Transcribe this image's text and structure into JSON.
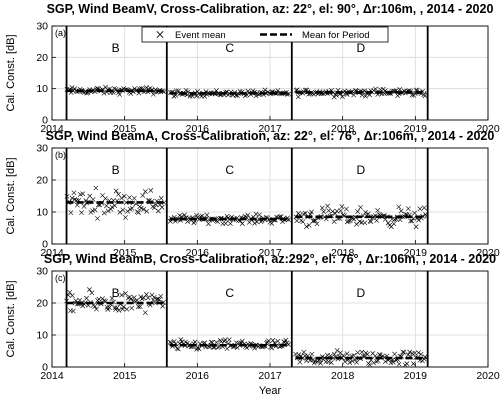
{
  "legend": {
    "event_label": "Event mean",
    "period_label": "Mean for Period",
    "placement": "top-center"
  },
  "chart_data": [
    {
      "type": "scatter",
      "title": "SGP, Wind BeamV, Cross-Calibration, az: 22°, el: 90°, Δr:106m, , 2014 - 2020",
      "panel_label": "(a)",
      "ylabel": "Cal. Const. [dB]",
      "xlabel": "",
      "xlim": [
        2014,
        2020
      ],
      "ylim": [
        0,
        30
      ],
      "xticks": [
        2014,
        2015,
        2016,
        2017,
        2018,
        2019,
        2020
      ],
      "xtick_labels": [
        "2014",
        "2015",
        "2016",
        "2017",
        "2018",
        "2019",
        "2020"
      ],
      "yticks": [
        0,
        10,
        20,
        30
      ],
      "ytick_labels": [
        "0",
        "10",
        "20",
        "30"
      ],
      "dividers": [
        2014.2,
        2015.58,
        2017.3,
        2019.17
      ],
      "periods": [
        {
          "name": "B",
          "start": 2014.2,
          "end": 2015.55,
          "mean": 9.3,
          "center": 11,
          "spread": 0.8
        },
        {
          "name": "C",
          "start": 2015.62,
          "end": 2017.27,
          "mean": 8.5,
          "center": 8.8,
          "spread": 0.7
        },
        {
          "name": "D",
          "start": 2017.35,
          "end": 2019.15,
          "mean": 8.8,
          "center": 9.2,
          "spread": 0.9
        }
      ]
    },
    {
      "type": "scatter",
      "title": "SGP, Wind BeamA, Cross-Calibration, az: 22°, el: 76°, Δr:106m, , 2014 - 2020",
      "panel_label": "(b)",
      "ylabel": "Cal. Const. [dB]",
      "xlabel": "",
      "xlim": [
        2014,
        2020
      ],
      "ylim": [
        0,
        30
      ],
      "xticks": [
        2014,
        2015,
        2016,
        2017,
        2018,
        2019,
        2020
      ],
      "xtick_labels": [
        "2014",
        "2015",
        "2016",
        "2017",
        "2018",
        "2019",
        "2020"
      ],
      "yticks": [
        0,
        10,
        20,
        30
      ],
      "ytick_labels": [
        "0",
        "10",
        "20",
        "30"
      ],
      "dividers": [
        2014.2,
        2015.58,
        2017.3,
        2019.17
      ],
      "periods": [
        {
          "name": "B",
          "start": 2014.2,
          "end": 2015.55,
          "mean": 13.0,
          "center": 14,
          "spread": 3.0
        },
        {
          "name": "C",
          "start": 2015.62,
          "end": 2017.27,
          "mean": 7.8,
          "center": 7.8,
          "spread": 1.0
        },
        {
          "name": "D",
          "start": 2017.35,
          "end": 2019.15,
          "mean": 8.5,
          "center": 8.5,
          "spread": 2.2
        }
      ]
    },
    {
      "type": "scatter",
      "title": "SGP, Wind BeamB, Cross-Calibration, az:292°, el: 76°, Δr:106m, , 2014 - 2020",
      "panel_label": "(c)",
      "ylabel": "Cal. Const. [dB]",
      "xlabel": "Year",
      "xlim": [
        2014,
        2020
      ],
      "ylim": [
        0,
        30
      ],
      "xticks": [
        2014,
        2015,
        2016,
        2017,
        2018,
        2019,
        2020
      ],
      "xtick_labels": [
        "2014",
        "2015",
        "2016",
        "2017",
        "2018",
        "2019",
        "2020"
      ],
      "yticks": [
        0,
        10,
        20,
        30
      ],
      "ytick_labels": [
        "0",
        "10",
        "20",
        "30"
      ],
      "dividers": [
        2014.2,
        2015.58,
        2017.3,
        2019.17
      ],
      "periods": [
        {
          "name": "B",
          "start": 2014.2,
          "end": 2015.55,
          "mean": 20.0,
          "center": 20,
          "spread": 2.5
        },
        {
          "name": "C",
          "start": 2015.62,
          "end": 2017.27,
          "mean": 6.8,
          "center": 7,
          "spread": 1.2
        },
        {
          "name": "D",
          "start": 2017.35,
          "end": 2019.15,
          "mean": 2.8,
          "center": 2.8,
          "spread": 1.8
        }
      ]
    }
  ]
}
